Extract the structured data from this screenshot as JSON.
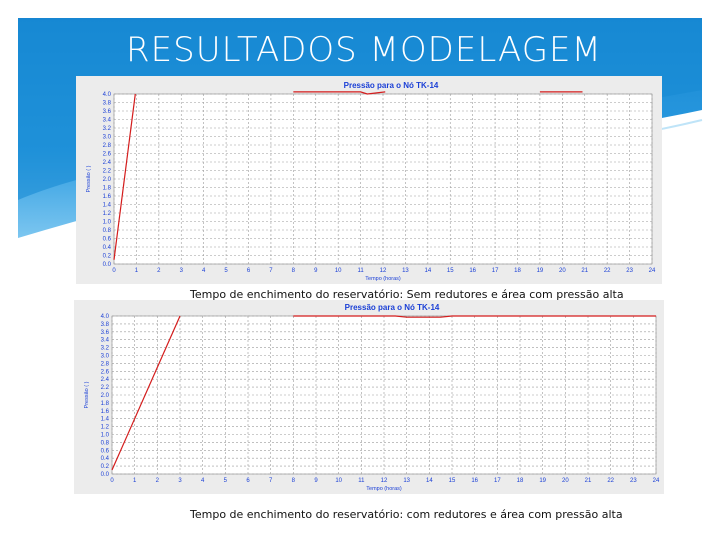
{
  "slide": {
    "title": "RESULTADOS MODELAGEM",
    "colors": {
      "header_blue": "#1f8fd6",
      "header_light": "#5fb8ec",
      "line_red": "#d41c1c",
      "title_blue": "#1a3fd6"
    }
  },
  "charts": [
    {
      "caption": "Tempo  de enchimento do reservatório: Sem redutores e área com pressão alta",
      "ylabel_text": "Pressão (  )",
      "xlabel_text": "Tempo (horas)"
    },
    {
      "caption": "Tempo de enchimento do reservatório: com redutores e área com pressão alta",
      "ylabel_text": "Pressão (  )",
      "xlabel_text": "Tempo (horas)"
    }
  ],
  "chart_data": [
    {
      "type": "line",
      "title": "Pressão para o Nó TK-14",
      "xlabel": "Tempo (horas)",
      "ylabel": "Pressão (  )",
      "xlim": [
        0,
        24
      ],
      "ylim": [
        0,
        4.0
      ],
      "x_ticks": [
        0,
        1,
        2,
        3,
        4,
        5,
        6,
        7,
        8,
        9,
        10,
        11,
        12,
        13,
        14,
        15,
        16,
        17,
        18,
        19,
        20,
        21,
        22,
        23,
        24
      ],
      "y_ticks": [
        0.0,
        0.2,
        0.4,
        0.6,
        0.8,
        1.0,
        1.2,
        1.4,
        1.6,
        1.8,
        2.0,
        2.2,
        2.4,
        2.6,
        2.8,
        3.0,
        3.2,
        3.4,
        3.6,
        3.8,
        4.0
      ],
      "y_tick_labels": [
        "0.0",
        "0.2",
        "0.4",
        "0.6",
        "0.8",
        "1.0",
        "1.2",
        "1.4",
        "1.6",
        "1.8",
        "2.0",
        "2.2",
        "2.4",
        "2.6",
        "2.8",
        "3.0",
        "3.2",
        "3.4",
        "3.6",
        "3.8",
        "4.0"
      ],
      "grid": true,
      "series": [
        {
          "x": [
            0,
            0.95
          ],
          "y": [
            0.1,
            4.0
          ]
        },
        {
          "x": [
            8.0,
            11.0,
            11.3,
            12.1
          ],
          "y": [
            4.05,
            4.05,
            4.0,
            4.05
          ]
        },
        {
          "x": [
            19.0,
            20.9
          ],
          "y": [
            4.05,
            4.05
          ]
        }
      ]
    },
    {
      "type": "line",
      "title": "Pressão para o Nó TK-14",
      "xlabel": "Tempo (horas)",
      "ylabel": "Pressão (  )",
      "xlim": [
        0,
        24
      ],
      "ylim": [
        0,
        4.0
      ],
      "x_ticks": [
        0,
        1,
        2,
        3,
        4,
        5,
        6,
        7,
        8,
        9,
        10,
        11,
        12,
        13,
        14,
        15,
        16,
        17,
        18,
        19,
        20,
        21,
        22,
        23,
        24
      ],
      "y_ticks": [
        0.0,
        0.2,
        0.4,
        0.6,
        0.8,
        1.0,
        1.2,
        1.4,
        1.6,
        1.8,
        2.0,
        2.2,
        2.4,
        2.6,
        2.8,
        3.0,
        3.2,
        3.4,
        3.6,
        3.8,
        4.0
      ],
      "y_tick_labels": [
        "0.0",
        "0.2",
        "0.4",
        "0.6",
        "0.8",
        "1.0",
        "1.2",
        "1.4",
        "1.6",
        "1.8",
        "2.0",
        "2.2",
        "2.4",
        "2.6",
        "2.8",
        "3.0",
        "3.2",
        "3.4",
        "3.6",
        "3.8",
        "4.0"
      ],
      "grid": true,
      "series": [
        {
          "x": [
            0,
            3.0
          ],
          "y": [
            0.1,
            4.0
          ]
        },
        {
          "x": [
            8.0,
            12.5,
            13.0,
            14.5,
            15.0,
            24.0
          ],
          "y": [
            4.0,
            4.0,
            3.97,
            3.97,
            4.0,
            4.0
          ]
        }
      ]
    }
  ]
}
